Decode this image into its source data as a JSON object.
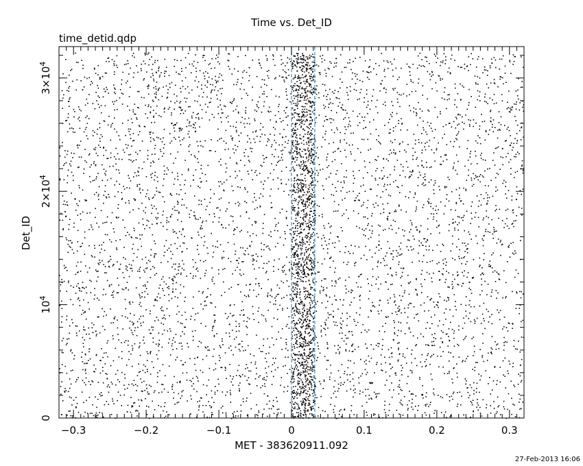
{
  "chart_data": {
    "type": "scatter",
    "title": "Time vs. Det_ID",
    "subtitle": "time_detid.qdp",
    "xlabel": "MET - 383620911.092",
    "ylabel": "Det_ID",
    "timestamp": "27-Feb-2013 16:06",
    "xlim": [
      -0.32,
      0.32
    ],
    "ylim": [
      0,
      32768
    ],
    "x_ticks": [
      {
        "value": -0.3,
        "label": "−0.3"
      },
      {
        "value": -0.2,
        "label": "−0.2"
      },
      {
        "value": -0.1,
        "label": "−0.1"
      },
      {
        "value": 0,
        "label": "0"
      },
      {
        "value": 0.1,
        "label": "0.1"
      },
      {
        "value": 0.2,
        "label": "0.2"
      },
      {
        "value": 0.3,
        "label": "0.3"
      }
    ],
    "y_ticks": [
      {
        "value": 0,
        "label": "0",
        "exp": ""
      },
      {
        "value": 10000,
        "label": "10",
        "exp": "4"
      },
      {
        "value": 20000,
        "label": "2×10",
        "exp": "4"
      },
      {
        "value": 30000,
        "label": "3×10",
        "exp": "4"
      }
    ],
    "grid": false,
    "reference_lines": {
      "x": [
        0.0,
        0.032
      ],
      "color": "#5aa0c8",
      "style": "dashed"
    },
    "point_color": "#000000",
    "density": {
      "background_points": 5200,
      "burst_interval": [
        0.0,
        0.032
      ],
      "burst_points": 1500
    }
  }
}
